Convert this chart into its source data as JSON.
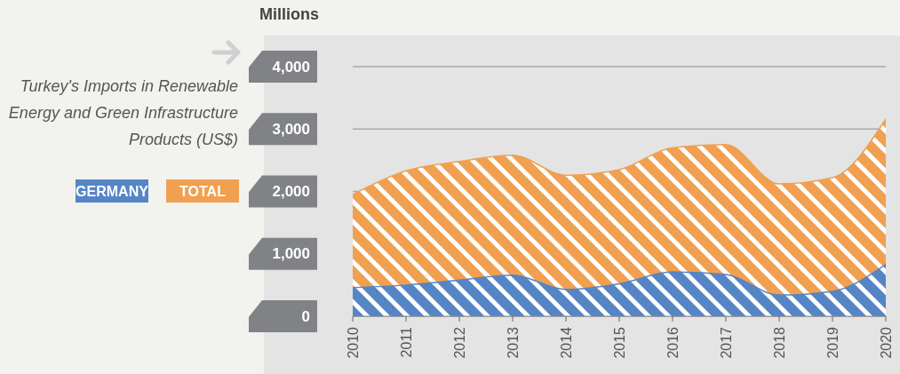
{
  "chart_data": {
    "type": "area",
    "title": "Turkey's Imports in Renewable Energy and Green Infrastructure Products (US$)",
    "ylabel": "Millions",
    "x": [
      2010,
      2011,
      2012,
      2013,
      2014,
      2015,
      2016,
      2017,
      2018,
      2019,
      2020
    ],
    "series": [
      {
        "name": "TOTAL",
        "color": "#f0a050",
        "values": [
          1950,
          2330,
          2480,
          2580,
          2260,
          2350,
          2700,
          2750,
          2120,
          2220,
          3160
        ]
      },
      {
        "name": "GERMANY",
        "color": "#5585c5",
        "values": [
          460,
          500,
          580,
          660,
          430,
          520,
          710,
          670,
          340,
          400,
          830
        ]
      }
    ],
    "xlim": [
      2010,
      2020
    ],
    "xticks": [
      2010,
      2011,
      2012,
      2013,
      2014,
      2015,
      2016,
      2017,
      2018,
      2019,
      2020
    ],
    "ylim": [
      0,
      4000
    ],
    "yticks": [
      0,
      {
        "value": 1000,
        "label": "1,000"
      },
      {
        "value": 2000,
        "label": "2,000"
      },
      {
        "value": 3000,
        "label": "3,000"
      },
      {
        "value": 4000,
        "label": "4,000"
      }
    ],
    "grid": "y",
    "legend": "left"
  }
}
